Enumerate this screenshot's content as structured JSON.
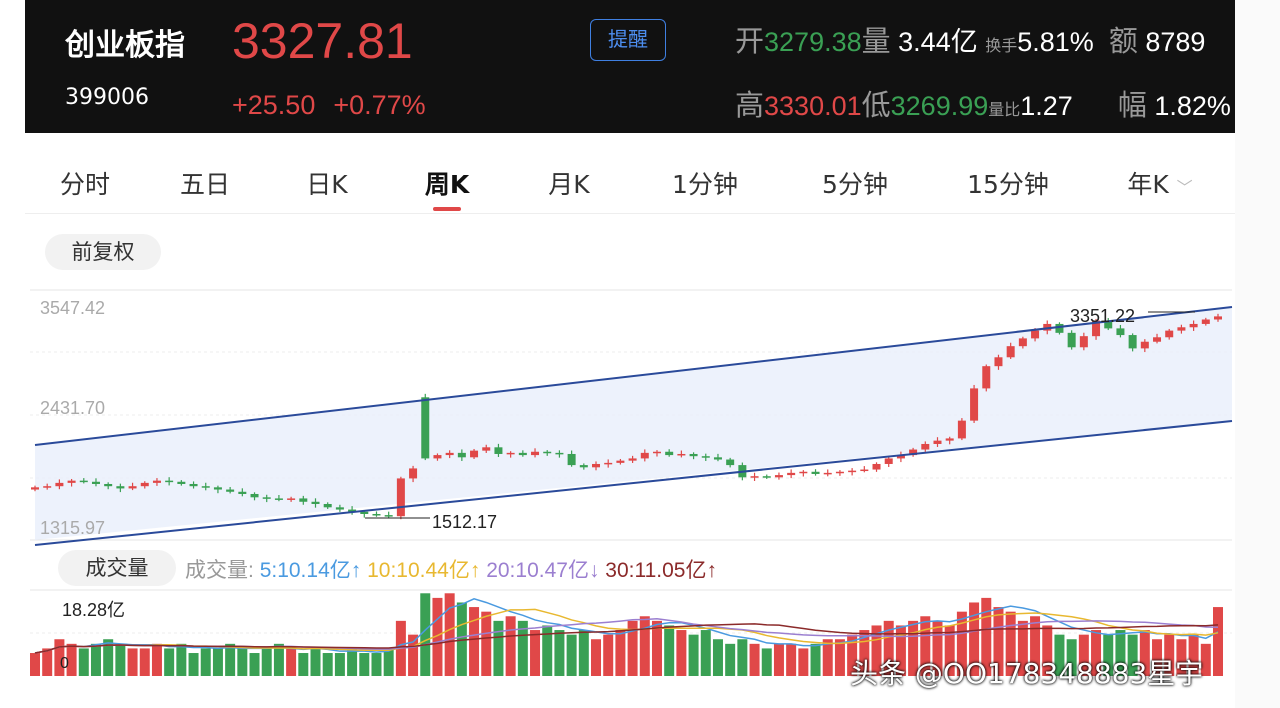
{
  "header": {
    "name": "创业板指",
    "code": "399006",
    "price": "3327.81",
    "change": "+25.50",
    "change_pct": "+0.77%",
    "remind_button": "提醒",
    "stats": {
      "open_label": "开",
      "open": "3279.38",
      "vol_label": "量",
      "vol": "3.44亿",
      "turnover_label": "换手",
      "turnover": "5.81%",
      "amount_label": "额",
      "amount": "8789",
      "high_label": "高",
      "high": "3330.01",
      "low_label": "低",
      "low": "3269.99",
      "ratio_label": "量比",
      "ratio": "1.27",
      "amp_label": "幅",
      "amp": "1.82%"
    }
  },
  "tabs": [
    {
      "label": "分时"
    },
    {
      "label": "五日"
    },
    {
      "label": "日K"
    },
    {
      "label": "周K",
      "active": true
    },
    {
      "label": "月K"
    },
    {
      "label": "1分钟"
    },
    {
      "label": "5分钟"
    },
    {
      "label": "15分钟"
    },
    {
      "label": "年K"
    }
  ],
  "adjust_label": "前复权",
  "volume_label": "成交量",
  "ma_legend": {
    "prefix": "成交量:",
    "ma5": "5:10.14亿↑",
    "ma10": "10:10.44亿↑",
    "ma20": "20:10.47亿↓",
    "ma30": "30:11.05亿↑"
  },
  "colors": {
    "up": "#e04848",
    "down": "#3aa054",
    "ma5": "#4a9ae0",
    "ma10": "#e8b830",
    "ma20": "#9b7fd0",
    "ma30": "#8b2a2a",
    "channel": "#2a4a9a"
  },
  "watermark": "头条 @OO178348883星宇",
  "chart_data": {
    "type": "candlestick",
    "y_ticks": [
      "3547.42",
      "2431.70",
      "1315.97"
    ],
    "ylim": [
      1315.97,
      3547.42
    ],
    "annotations": {
      "high": "3351.22",
      "low": "1512.17"
    },
    "channel": {
      "upper": [
        2171,
        3412
      ],
      "lower": [
        1271,
        2387
      ]
    },
    "closes": [
      1790,
      1800,
      1830,
      1850,
      1840,
      1820,
      1800,
      1780,
      1800,
      1830,
      1850,
      1840,
      1820,
      1800,
      1790,
      1770,
      1750,
      1730,
      1700,
      1690,
      1680,
      1690,
      1660,
      1640,
      1610,
      1590,
      1570,
      1550,
      1540,
      1530,
      1870,
      1960,
      2050,
      2080,
      2100,
      2060,
      2120,
      2150,
      2090,
      2100,
      2080,
      2110,
      2100,
      2090,
      1990,
      1970,
      2000,
      2010,
      2030,
      2050,
      2100,
      2110,
      2080,
      2090,
      2070,
      2060,
      2040,
      1990,
      1880,
      1890,
      1880,
      1900,
      1920,
      1930,
      1910,
      1920,
      1930,
      1940,
      1950,
      2000,
      2050,
      2080,
      2130,
      2180,
      2210,
      2230,
      2390,
      2680,
      2880,
      2960,
      3060,
      3130,
      3200,
      3260,
      3180,
      3050,
      3150,
      3290,
      3220,
      3160,
      3040,
      3100,
      3140,
      3200,
      3230,
      3260,
      3300,
      3328
    ],
    "volume": {
      "max_label": "18.28亿",
      "zero_label": "0",
      "max": 18.28,
      "values": [
        5,
        6,
        8,
        7,
        6,
        7,
        8,
        7,
        6,
        6,
        7,
        6,
        7,
        5,
        6,
        6,
        7,
        6,
        5,
        6,
        7,
        6,
        5,
        6,
        5,
        5,
        6,
        5,
        5,
        6,
        12,
        9,
        18,
        17,
        18,
        16,
        15,
        14,
        12,
        13,
        12,
        10,
        11,
        10,
        9,
        10,
        8,
        9,
        10,
        12,
        13,
        12,
        11,
        10,
        9,
        10,
        8,
        7,
        8,
        7,
        6,
        7,
        7,
        6,
        7,
        8,
        8,
        9,
        10,
        11,
        12,
        11,
        12,
        13,
        12,
        11,
        14,
        16,
        17,
        15,
        14,
        12,
        13,
        11,
        9,
        8,
        9,
        10,
        9,
        10,
        9,
        10,
        8,
        9,
        8,
        9,
        7,
        15
      ]
    }
  }
}
